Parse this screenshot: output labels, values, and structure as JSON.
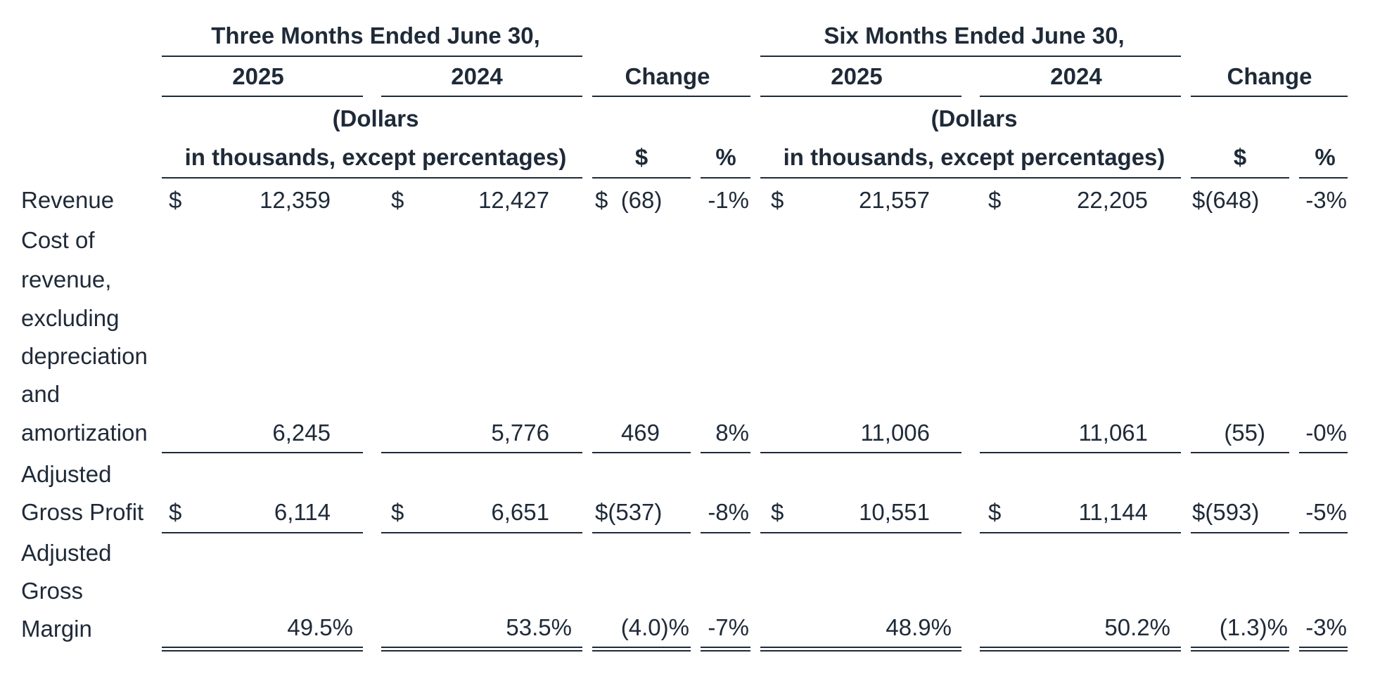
{
  "header": {
    "three_months": "Three Months Ended June 30,",
    "six_months": "Six Months Ended June 30,",
    "year_2025": "2025",
    "year_2024": "2024",
    "change": "Change",
    "dollars_line1": "(Dollars",
    "dollars_line2": "in thousands, except percentages)",
    "dollar_col": "$",
    "percent_col": "%"
  },
  "rows": [
    {
      "label_lines": [
        "Revenue"
      ],
      "q25_sign": "$",
      "q25": "12,359",
      "q24_sign": "$",
      "q24": "12,427",
      "qchg": "$  (68)",
      "qpct": "-1%",
      "s25_sign": "$",
      "s25": "21,557",
      "s24_sign": "$",
      "s24": "22,205",
      "schg": "$(648)",
      "spct": "-3%"
    },
    {
      "label_lines": [
        "Cost of",
        "revenue,",
        "excluding",
        "depreciation",
        "and",
        "amortization"
      ],
      "q25_sign": "",
      "q25": "6,245",
      "q24_sign": "",
      "q24": "5,776",
      "qchg": "469",
      "qpct": "8%",
      "s25_sign": "",
      "s25": "11,006",
      "s24_sign": "",
      "s24": "11,061",
      "schg": "(55)",
      "spct": "-0%"
    },
    {
      "label_lines": [
        "Adjusted",
        "Gross Profit"
      ],
      "q25_sign": "$",
      "q25": "6,114",
      "q24_sign": "$",
      "q24": "6,651",
      "qchg": "$(537)",
      "qpct": "-8%",
      "s25_sign": "$",
      "s25": "10,551",
      "s24_sign": "$",
      "s24": "11,144",
      "schg": "$(593)",
      "spct": "-5%"
    },
    {
      "label_lines": [
        "Adjusted",
        "Gross",
        "Margin"
      ],
      "q25_sign": "",
      "q25": "49.5%",
      "q24_sign": "",
      "q24": "53.5%",
      "qchg": "(4.0)%",
      "qpct": "-7%",
      "s25_sign": "",
      "s25": "48.9%",
      "s24_sign": "",
      "s24": "50.2%",
      "schg": "(1.3)%",
      "spct": "-3%"
    }
  ]
}
